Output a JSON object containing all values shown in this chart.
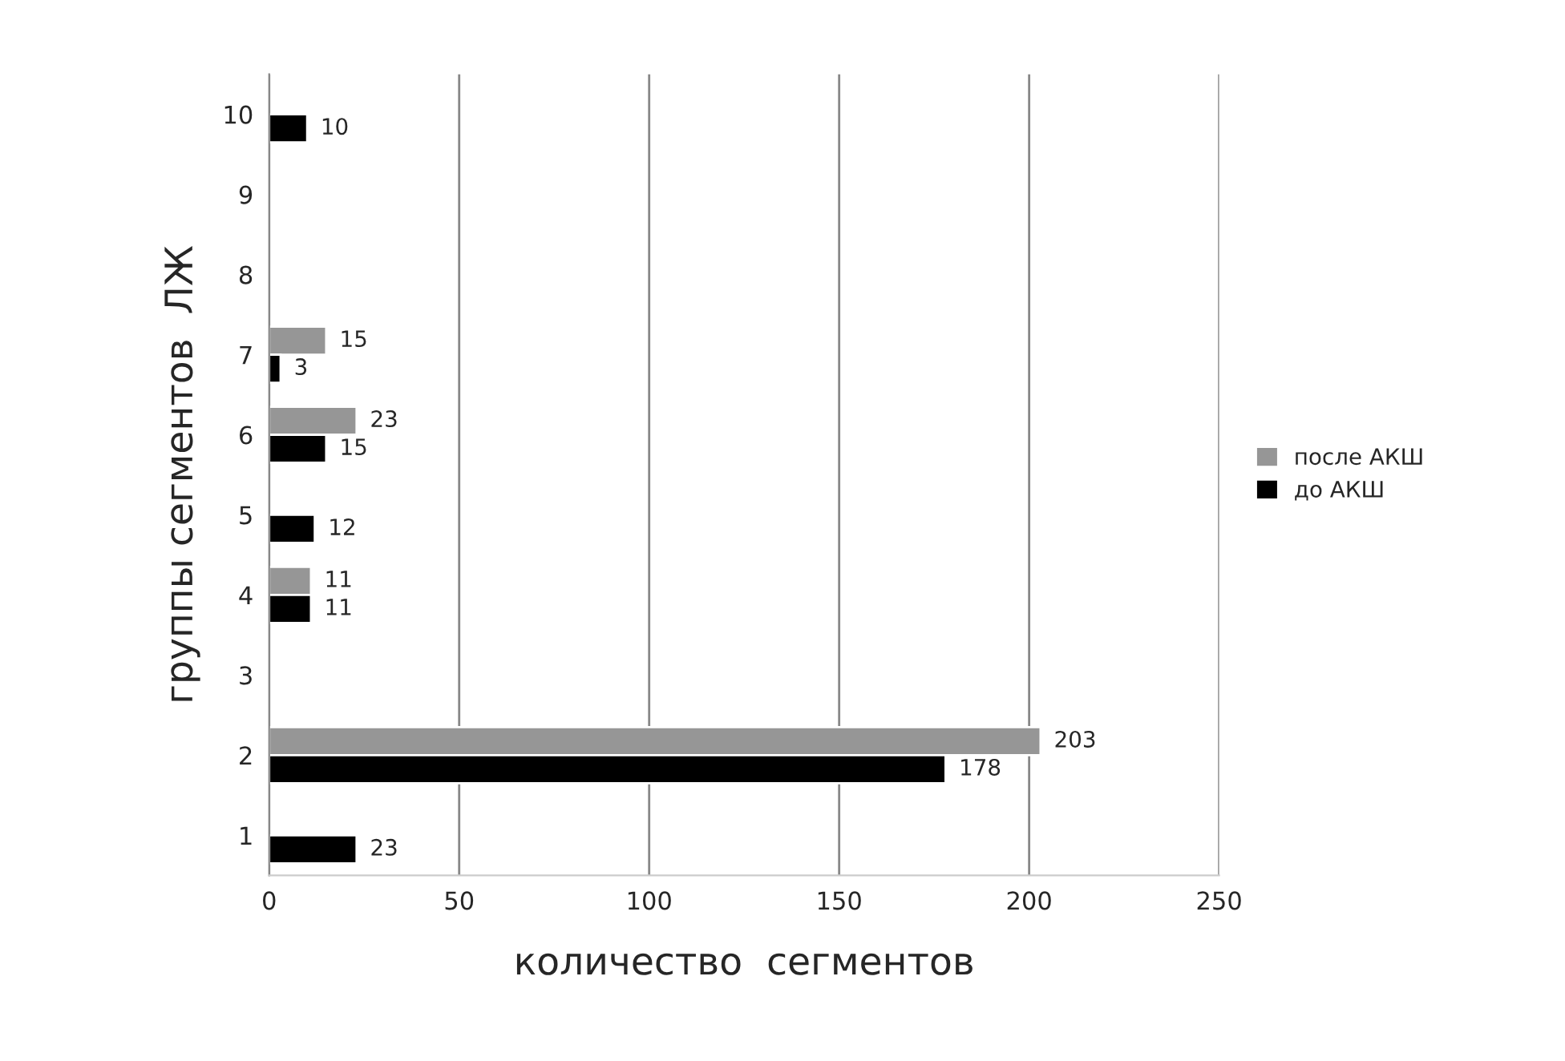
{
  "chart_data": {
    "type": "bar",
    "orientation": "horizontal",
    "categories": [
      "10",
      "9",
      "8",
      "7",
      "6",
      "5",
      "4",
      "3",
      "2",
      "1"
    ],
    "series": [
      {
        "name": "после АКШ",
        "color": "#969696",
        "values": [
          null,
          null,
          null,
          15,
          23,
          null,
          11,
          null,
          203,
          null
        ]
      },
      {
        "name": "до АКШ",
        "color": "#000000",
        "values": [
          10,
          null,
          null,
          3,
          15,
          12,
          11,
          null,
          178,
          23
        ]
      }
    ],
    "xlabel": "количество  сегментов",
    "ylabel": "группы сегментов  ЛЖ",
    "xlim": [
      0,
      250
    ],
    "xticks": [
      0,
      50,
      100,
      150,
      200,
      250
    ],
    "grid": "x",
    "legend": "right",
    "data_labels": true
  }
}
